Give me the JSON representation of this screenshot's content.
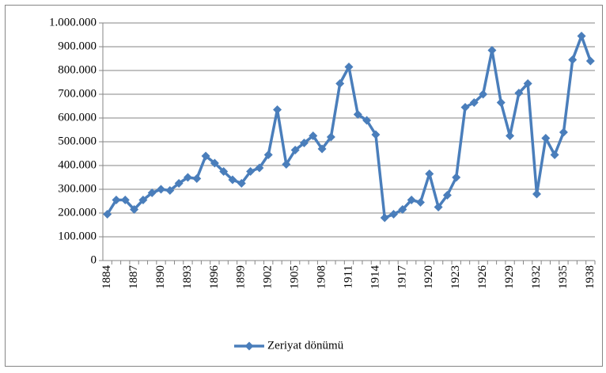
{
  "chart_data": {
    "type": "line",
    "categories": [
      "1884",
      null,
      null,
      "1887",
      null,
      null,
      "1890",
      null,
      null,
      "1893",
      null,
      null,
      "1896",
      null,
      null,
      "1899",
      null,
      null,
      "1902",
      null,
      null,
      "1905",
      null,
      null,
      "1908",
      null,
      null,
      "1911",
      null,
      null,
      "1914",
      null,
      null,
      "1917",
      null,
      null,
      "1920",
      null,
      null,
      "1923",
      null,
      null,
      "1926",
      null,
      null,
      "1929",
      null,
      null,
      "1932",
      null,
      null,
      "1935",
      null,
      null,
      "1938"
    ],
    "series": [
      {
        "name": "Zeriyat dönümü",
        "color": "#4a7ebb",
        "values": [
          195000,
          255000,
          255000,
          215000,
          255000,
          285000,
          300000,
          295000,
          325000,
          350000,
          345000,
          440000,
          410000,
          375000,
          340000,
          325000,
          375000,
          390000,
          445000,
          635000,
          405000,
          465000,
          495000,
          525000,
          470000,
          520000,
          745000,
          815000,
          615000,
          590000,
          530000,
          180000,
          195000,
          215000,
          255000,
          245000,
          365000,
          225000,
          275000,
          350000,
          645000,
          665000,
          700000,
          885000,
          665000,
          525000,
          705000,
          745000,
          280000,
          515000,
          445000,
          540000,
          845000,
          945000,
          840000
        ]
      }
    ],
    "ylim": [
      0,
      1000000
    ],
    "yticks": [
      0,
      {
        "value": 100000,
        "label": "100.000"
      },
      {
        "value": 200000,
        "label": "200.000"
      },
      {
        "value": 300000,
        "label": "300.000"
      },
      {
        "value": 400000,
        "label": "400.000"
      },
      {
        "value": 500000,
        "label": "500.000"
      },
      {
        "value": 600000,
        "label": "600.000"
      },
      {
        "value": 700000,
        "label": "700.000"
      },
      {
        "value": 800000,
        "label": "800.000"
      },
      {
        "value": 900000,
        "label": "900.000"
      },
      {
        "value": 1000000,
        "label": "1.000.000"
      }
    ],
    "grid": true,
    "legend": "bottom"
  }
}
